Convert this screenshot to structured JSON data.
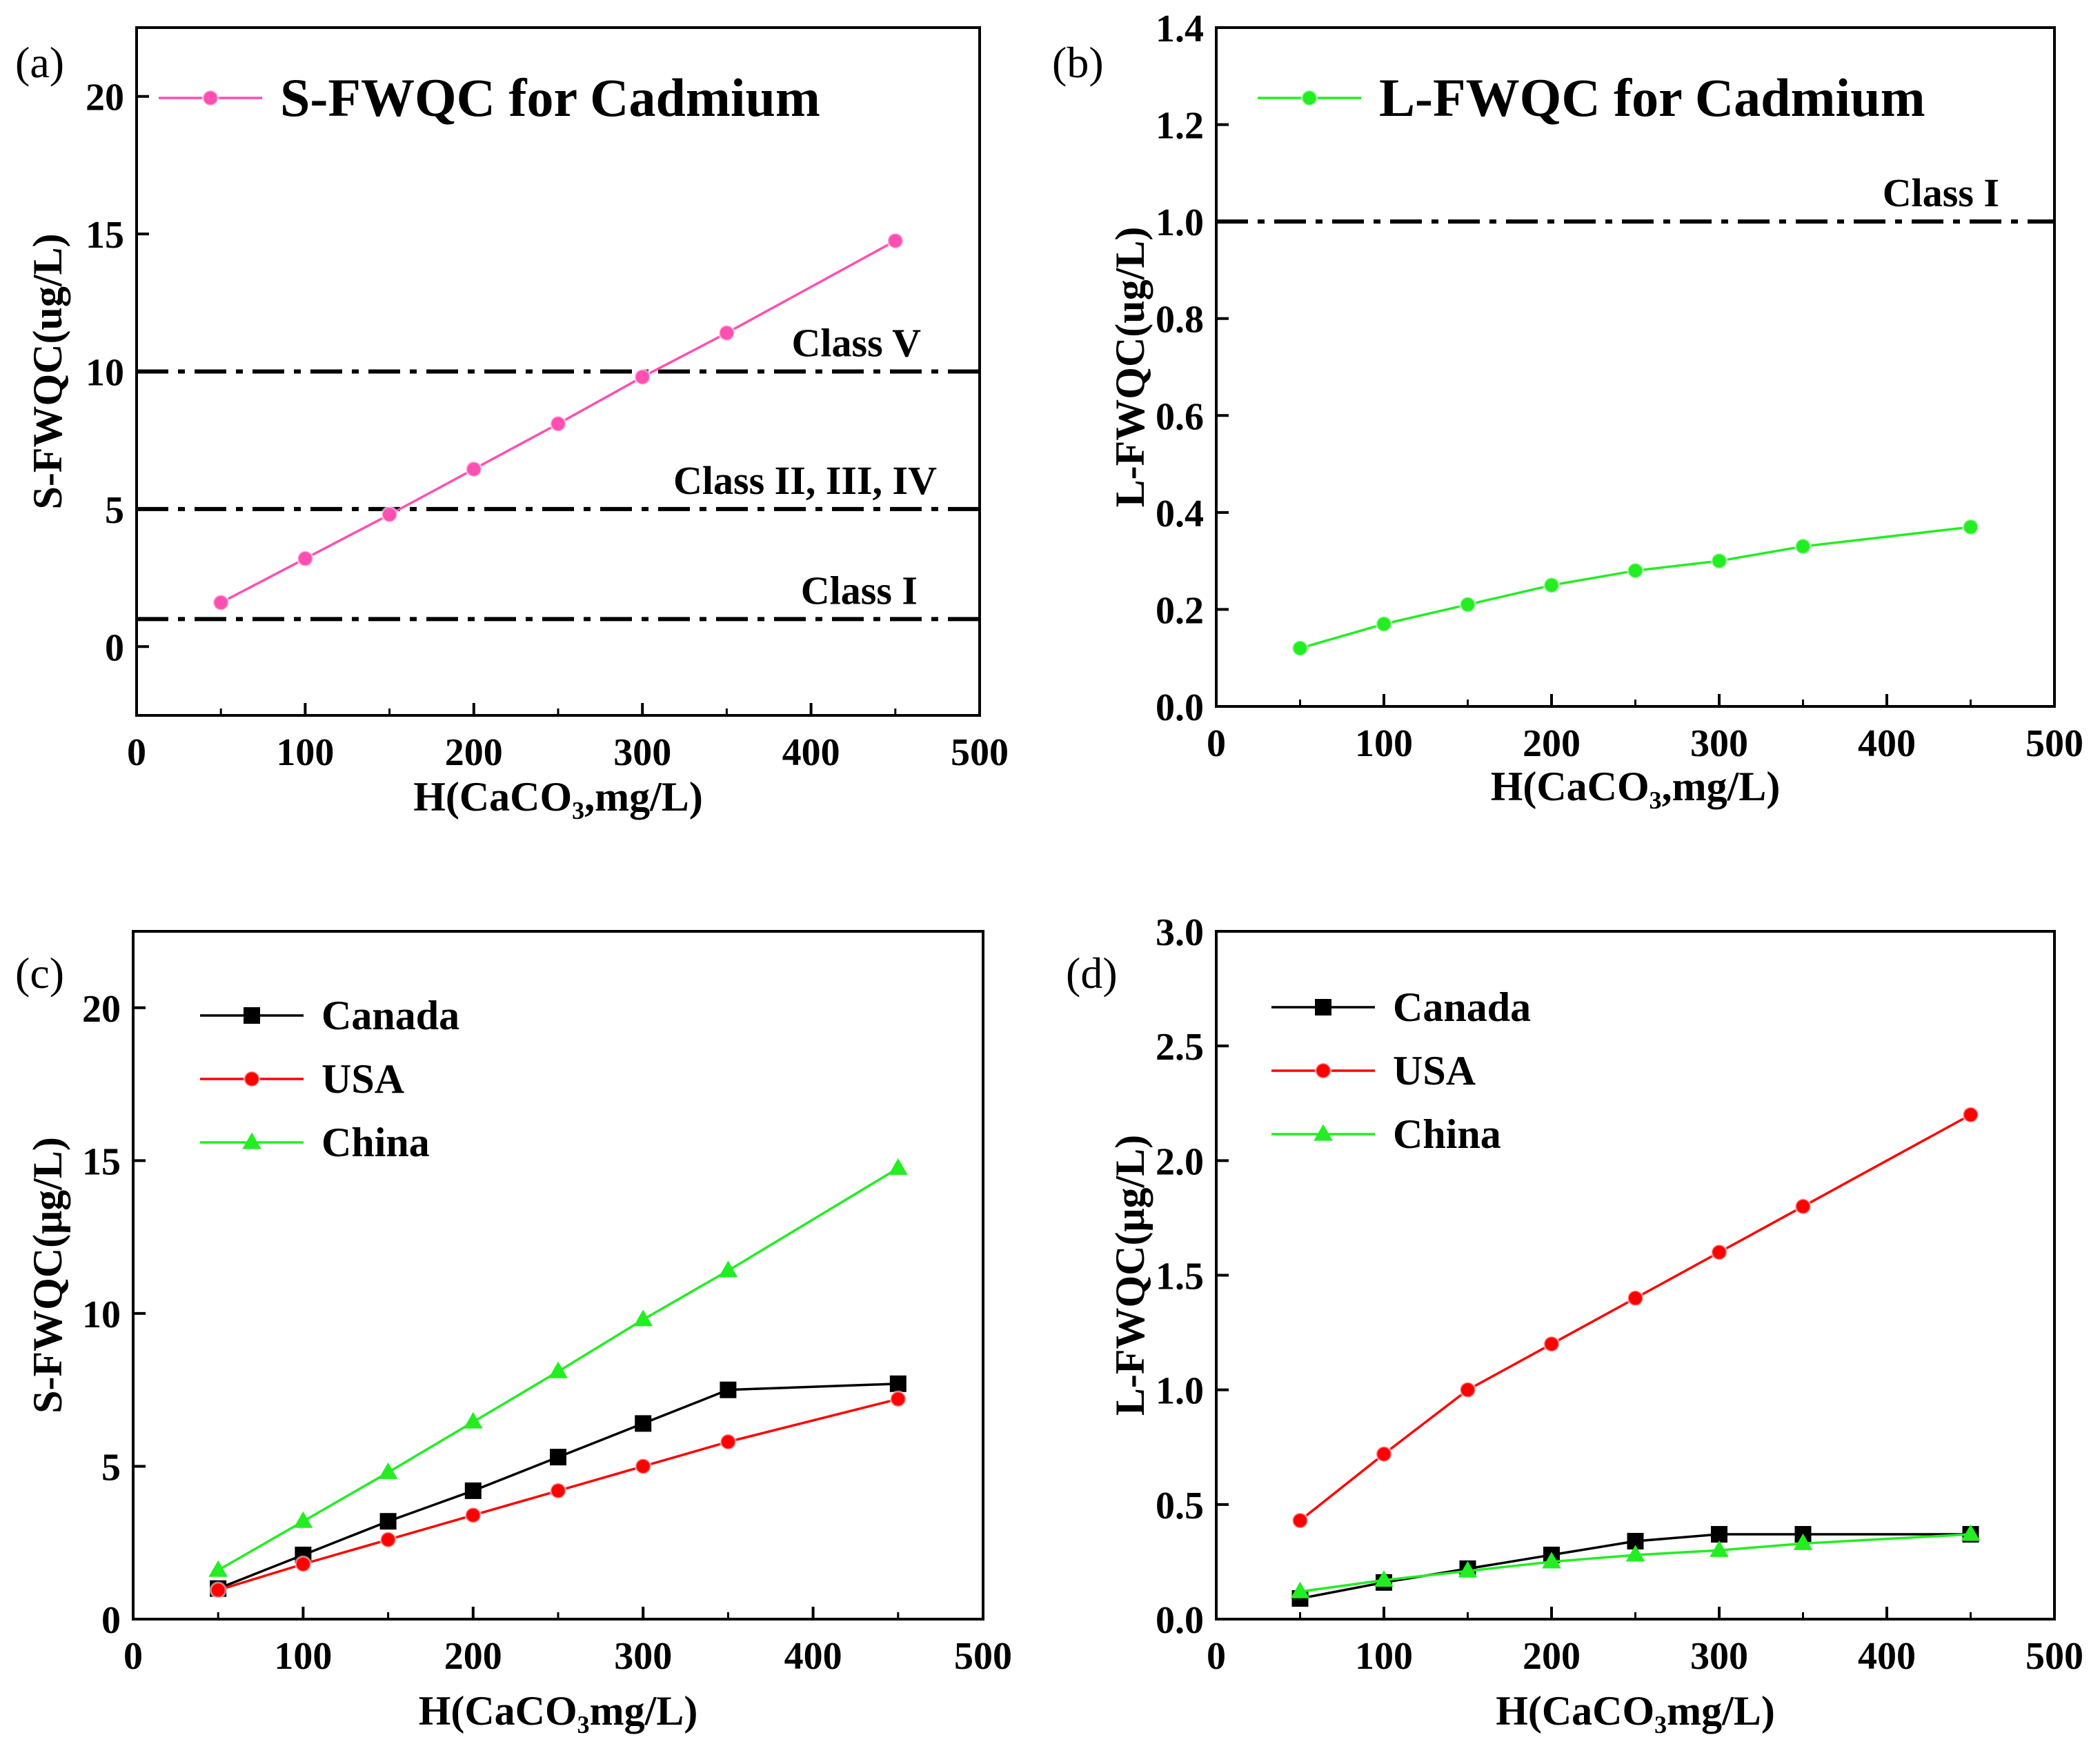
{
  "chart_data": [
    {
      "panel": "(a)",
      "type": "line",
      "xlabel": "H(CaCO₃,mg/L)",
      "ylabel": "S-FWQC(ug/L)",
      "xlim": [
        0,
        500
      ],
      "ylim": [
        -2.5,
        22.5
      ],
      "xticks": [
        0,
        100,
        200,
        300,
        400,
        500
      ],
      "yticks": [
        0,
        5,
        10,
        15,
        20
      ],
      "legend_position": "top-left",
      "series": [
        {
          "name": "S-FWQC for Cadmium",
          "color": "#ff4fb0",
          "marker": "circle",
          "x": [
            50,
            100,
            150,
            200,
            250,
            300,
            350,
            450
          ],
          "values": [
            1.6,
            3.2,
            4.8,
            6.45,
            8.1,
            9.8,
            11.4,
            14.75
          ]
        }
      ],
      "reference_lines": [
        {
          "label": "Class V",
          "value": 10
        },
        {
          "label": "Class II, III, IV",
          "value": 5
        },
        {
          "label": "Class I",
          "value": 1
        }
      ]
    },
    {
      "panel": "(b)",
      "type": "line",
      "xlabel": "H(CaCO₃,mg/L)",
      "ylabel": "L-FWQC(ug/L)",
      "xlim": [
        0,
        500
      ],
      "ylim": [
        0,
        1.4
      ],
      "xticks": [
        0,
        100,
        200,
        300,
        400,
        500
      ],
      "yticks": [
        0.0,
        0.2,
        0.4,
        0.6,
        0.8,
        1.0,
        1.2,
        1.4
      ],
      "legend_position": "top-left",
      "series": [
        {
          "name": "L-FWQC for Cadmium",
          "color": "#22ee22",
          "marker": "circle",
          "x": [
            50,
            100,
            150,
            200,
            250,
            300,
            350,
            450
          ],
          "values": [
            0.12,
            0.17,
            0.21,
            0.25,
            0.28,
            0.3,
            0.33,
            0.37
          ]
        }
      ],
      "reference_lines": [
        {
          "label": "Class I",
          "value": 1.0
        }
      ]
    },
    {
      "panel": "(c)",
      "type": "line",
      "xlabel": "H(CaCO₃mg/L)",
      "ylabel": "S-FWQC(μg/L)",
      "xlim": [
        0,
        500
      ],
      "ylim": [
        0,
        22.5
      ],
      "xticks": [
        0,
        100,
        200,
        300,
        400,
        500
      ],
      "yticks": [
        0,
        5,
        10,
        15,
        20
      ],
      "legend_position": "top-left",
      "series": [
        {
          "name": "Canada",
          "color": "#000000",
          "marker": "square",
          "x": [
            50,
            100,
            150,
            200,
            250,
            300,
            350,
            450
          ],
          "values": [
            1.0,
            2.1,
            3.2,
            4.2,
            5.3,
            6.4,
            7.5,
            7.7
          ]
        },
        {
          "name": "USA",
          "color": "#ff0000",
          "marker": "circle",
          "x": [
            50,
            100,
            150,
            200,
            250,
            300,
            350,
            450
          ],
          "values": [
            0.95,
            1.8,
            2.6,
            3.4,
            4.2,
            5.0,
            5.8,
            7.2
          ]
        },
        {
          "name": "China",
          "color": "#22ee22",
          "marker": "triangle",
          "x": [
            50,
            100,
            150,
            200,
            250,
            300,
            350,
            450
          ],
          "values": [
            1.6,
            3.2,
            4.8,
            6.45,
            8.1,
            9.8,
            11.4,
            14.75
          ]
        }
      ]
    },
    {
      "panel": "(d)",
      "type": "line",
      "xlabel": "H(CaCO₃mg/L)",
      "ylabel": "L-FWQC(μg/L)",
      "xlim": [
        0,
        500
      ],
      "ylim": [
        0,
        3.0
      ],
      "xticks": [
        0,
        100,
        200,
        300,
        400,
        500
      ],
      "yticks": [
        0.0,
        0.5,
        1.0,
        1.5,
        2.0,
        2.5,
        3.0
      ],
      "legend_position": "top-left",
      "series": [
        {
          "name": "Canada",
          "color": "#000000",
          "marker": "square",
          "x": [
            50,
            100,
            150,
            200,
            250,
            300,
            350,
            450
          ],
          "values": [
            0.09,
            0.16,
            0.22,
            0.28,
            0.34,
            0.37,
            0.37,
            0.37
          ]
        },
        {
          "name": "USA",
          "color": "#ff0000",
          "marker": "circle",
          "x": [
            50,
            100,
            150,
            200,
            250,
            300,
            350,
            450
          ],
          "values": [
            0.43,
            0.72,
            1.0,
            1.2,
            1.4,
            1.6,
            1.8,
            2.2
          ]
        },
        {
          "name": "China",
          "color": "#22ee22",
          "marker": "triangle",
          "x": [
            50,
            100,
            150,
            200,
            250,
            300,
            350,
            450
          ],
          "values": [
            0.12,
            0.17,
            0.21,
            0.25,
            0.28,
            0.3,
            0.33,
            0.37
          ]
        }
      ]
    }
  ]
}
